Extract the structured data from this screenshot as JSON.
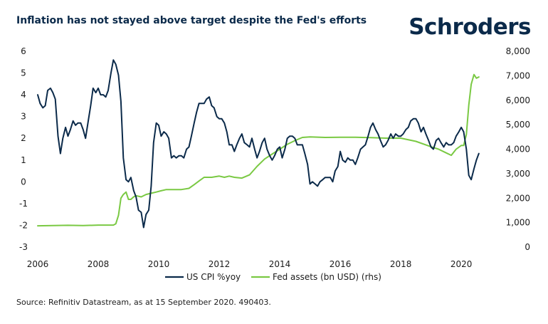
{
  "header": {
    "title": "Inflation has not stayed above target despite the Fed's efforts",
    "brand": "Schroders"
  },
  "footer": {
    "source": "Source: Refinitiv Datastream, as at 15 September 2020. 490403."
  },
  "colors": {
    "cpi": "#0b2a4a",
    "fed": "#7ac943",
    "text": "#1b1b1b"
  },
  "chart_data": {
    "type": "line",
    "title": "Inflation has not stayed above target despite the Fed's efforts",
    "xlabel": "",
    "ylabel": "",
    "xlim": [
      2006,
      2020.75
    ],
    "ylim": [
      -3,
      6
    ],
    "y2lim": [
      0,
      8000
    ],
    "x_ticks": [
      2006,
      2008,
      2010,
      2012,
      2014,
      2016,
      2018,
      2020
    ],
    "x_tick_labels": [
      "2006",
      "2008",
      "2010",
      "2012",
      "2014",
      "2016",
      "2018",
      "2020"
    ],
    "y_ticks": [
      -3,
      -2,
      -1,
      0,
      1,
      2,
      3,
      4,
      5,
      6
    ],
    "y_tick_labels": [
      "-3",
      "-2",
      "-1",
      "0",
      "1",
      "2",
      "3",
      "4",
      "5",
      "6"
    ],
    "y2_ticks": [
      0,
      1000,
      2000,
      3000,
      4000,
      5000,
      6000,
      7000,
      8000
    ],
    "y2_tick_labels": [
      "0",
      "1,000",
      "2,000",
      "3,000",
      "4,000",
      "5,000",
      "6,000",
      "7,000",
      "8,000"
    ],
    "grid": false,
    "legend_position": "bottom-center",
    "series": [
      {
        "name": "US CPI %yoy",
        "axis": "left",
        "x": [
          2006.0,
          2006.08,
          2006.17,
          2006.25,
          2006.33,
          2006.42,
          2006.5,
          2006.58,
          2006.67,
          2006.75,
          2006.83,
          2006.92,
          2007.0,
          2007.08,
          2007.17,
          2007.25,
          2007.33,
          2007.42,
          2007.5,
          2007.58,
          2007.67,
          2007.75,
          2007.83,
          2007.92,
          2008.0,
          2008.08,
          2008.17,
          2008.25,
          2008.33,
          2008.42,
          2008.5,
          2008.58,
          2008.67,
          2008.75,
          2008.83,
          2008.92,
          2009.0,
          2009.08,
          2009.17,
          2009.25,
          2009.33,
          2009.42,
          2009.5,
          2009.58,
          2009.67,
          2009.75,
          2009.83,
          2009.92,
          2010.0,
          2010.08,
          2010.17,
          2010.25,
          2010.33,
          2010.42,
          2010.5,
          2010.58,
          2010.67,
          2010.75,
          2010.83,
          2010.92,
          2011.0,
          2011.08,
          2011.17,
          2011.25,
          2011.33,
          2011.42,
          2011.5,
          2011.58,
          2011.67,
          2011.75,
          2011.83,
          2011.92,
          2012.0,
          2012.08,
          2012.17,
          2012.25,
          2012.33,
          2012.42,
          2012.5,
          2012.58,
          2012.67,
          2012.75,
          2012.83,
          2012.92,
          2013.0,
          2013.08,
          2013.17,
          2013.25,
          2013.33,
          2013.42,
          2013.5,
          2013.58,
          2013.67,
          2013.75,
          2013.83,
          2013.92,
          2014.0,
          2014.08,
          2014.17,
          2014.25,
          2014.33,
          2014.42,
          2014.5,
          2014.58,
          2014.67,
          2014.75,
          2014.83,
          2014.92,
          2015.0,
          2015.08,
          2015.17,
          2015.25,
          2015.33,
          2015.42,
          2015.5,
          2015.58,
          2015.67,
          2015.75,
          2015.83,
          2015.92,
          2016.0,
          2016.08,
          2016.17,
          2016.25,
          2016.33,
          2016.42,
          2016.5,
          2016.58,
          2016.67,
          2016.75,
          2016.83,
          2016.92,
          2017.0,
          2017.08,
          2017.17,
          2017.25,
          2017.33,
          2017.42,
          2017.5,
          2017.58,
          2017.67,
          2017.75,
          2017.83,
          2017.92,
          2018.0,
          2018.08,
          2018.17,
          2018.25,
          2018.33,
          2018.42,
          2018.5,
          2018.58,
          2018.67,
          2018.75,
          2018.83,
          2018.92,
          2019.0,
          2019.08,
          2019.17,
          2019.25,
          2019.33,
          2019.42,
          2019.5,
          2019.58,
          2019.67,
          2019.75,
          2019.83,
          2019.92,
          2020.0,
          2020.08,
          2020.17,
          2020.25,
          2020.33,
          2020.42,
          2020.5,
          2020.58
        ],
        "values": [
          4.0,
          3.6,
          3.4,
          3.5,
          4.2,
          4.3,
          4.1,
          3.8,
          2.1,
          1.3,
          2.0,
          2.5,
          2.1,
          2.4,
          2.8,
          2.6,
          2.7,
          2.7,
          2.4,
          2.0,
          2.8,
          3.5,
          4.3,
          4.1,
          4.3,
          4.0,
          4.0,
          3.9,
          4.2,
          5.0,
          5.6,
          5.4,
          4.9,
          3.7,
          1.1,
          0.1,
          0.0,
          0.2,
          -0.4,
          -0.7,
          -1.3,
          -1.4,
          -2.1,
          -1.5,
          -1.3,
          -0.2,
          1.8,
          2.7,
          2.6,
          2.1,
          2.3,
          2.2,
          2.0,
          1.1,
          1.2,
          1.1,
          1.2,
          1.2,
          1.1,
          1.5,
          1.6,
          2.1,
          2.7,
          3.2,
          3.6,
          3.6,
          3.6,
          3.8,
          3.9,
          3.5,
          3.4,
          3.0,
          2.9,
          2.9,
          2.7,
          2.3,
          1.7,
          1.7,
          1.4,
          1.7,
          2.0,
          2.2,
          1.8,
          1.7,
          1.6,
          2.0,
          1.5,
          1.1,
          1.4,
          1.8,
          2.0,
          1.5,
          1.2,
          1.0,
          1.2,
          1.5,
          1.6,
          1.1,
          1.5,
          2.0,
          2.1,
          2.1,
          2.0,
          1.7,
          1.7,
          1.7,
          1.3,
          0.8,
          -0.1,
          0.0,
          -0.1,
          -0.2,
          0.0,
          0.1,
          0.2,
          0.2,
          0.2,
          0.0,
          0.5,
          0.7,
          1.4,
          1.0,
          0.9,
          1.1,
          1.0,
          1.0,
          0.8,
          1.1,
          1.5,
          1.6,
          1.7,
          2.1,
          2.5,
          2.7,
          2.4,
          2.2,
          1.9,
          1.6,
          1.7,
          1.9,
          2.2,
          2.0,
          2.2,
          2.1,
          2.1,
          2.2,
          2.4,
          2.5,
          2.8,
          2.9,
          2.9,
          2.7,
          2.3,
          2.5,
          2.2,
          1.9,
          1.6,
          1.5,
          1.9,
          2.0,
          1.8,
          1.6,
          1.8,
          1.7,
          1.7,
          1.8,
          2.1,
          2.3,
          2.5,
          2.3,
          1.5,
          0.3,
          0.1,
          0.6,
          1.0,
          1.3
        ]
      },
      {
        "name": "Fed assets (bn USD) (rhs)",
        "axis": "right",
        "x": [
          2006.0,
          2006.5,
          2007.0,
          2007.5,
          2008.0,
          2008.5,
          2008.58,
          2008.67,
          2008.75,
          2008.83,
          2008.92,
          2009.0,
          2009.08,
          2009.17,
          2009.25,
          2009.42,
          2009.58,
          2009.75,
          2009.92,
          2010.08,
          2010.25,
          2010.5,
          2010.75,
          2011.0,
          2011.17,
          2011.33,
          2011.5,
          2011.75,
          2012.0,
          2012.17,
          2012.33,
          2012.5,
          2012.75,
          2013.0,
          2013.25,
          2013.5,
          2013.75,
          2014.0,
          2014.25,
          2014.5,
          2014.75,
          2015.0,
          2015.5,
          2016.0,
          2016.5,
          2017.0,
          2017.5,
          2018.0,
          2018.5,
          2019.0,
          2019.25,
          2019.5,
          2019.67,
          2019.83,
          2020.0,
          2020.08,
          2020.17,
          2020.25,
          2020.33,
          2020.42,
          2020.5,
          2020.58
        ],
        "values": [
          870,
          880,
          890,
          880,
          900,
          900,
          950,
          1300,
          2000,
          2150,
          2250,
          1950,
          1950,
          2050,
          2100,
          2050,
          2150,
          2200,
          2250,
          2300,
          2350,
          2350,
          2350,
          2400,
          2550,
          2700,
          2850,
          2850,
          2900,
          2850,
          2900,
          2850,
          2820,
          2950,
          3300,
          3600,
          3800,
          4000,
          4200,
          4350,
          4480,
          4500,
          4480,
          4490,
          4490,
          4470,
          4450,
          4450,
          4320,
          4100,
          4000,
          3850,
          3750,
          4000,
          4150,
          4150,
          4600,
          5800,
          6650,
          7050,
          6900,
          6950
        ]
      }
    ]
  }
}
